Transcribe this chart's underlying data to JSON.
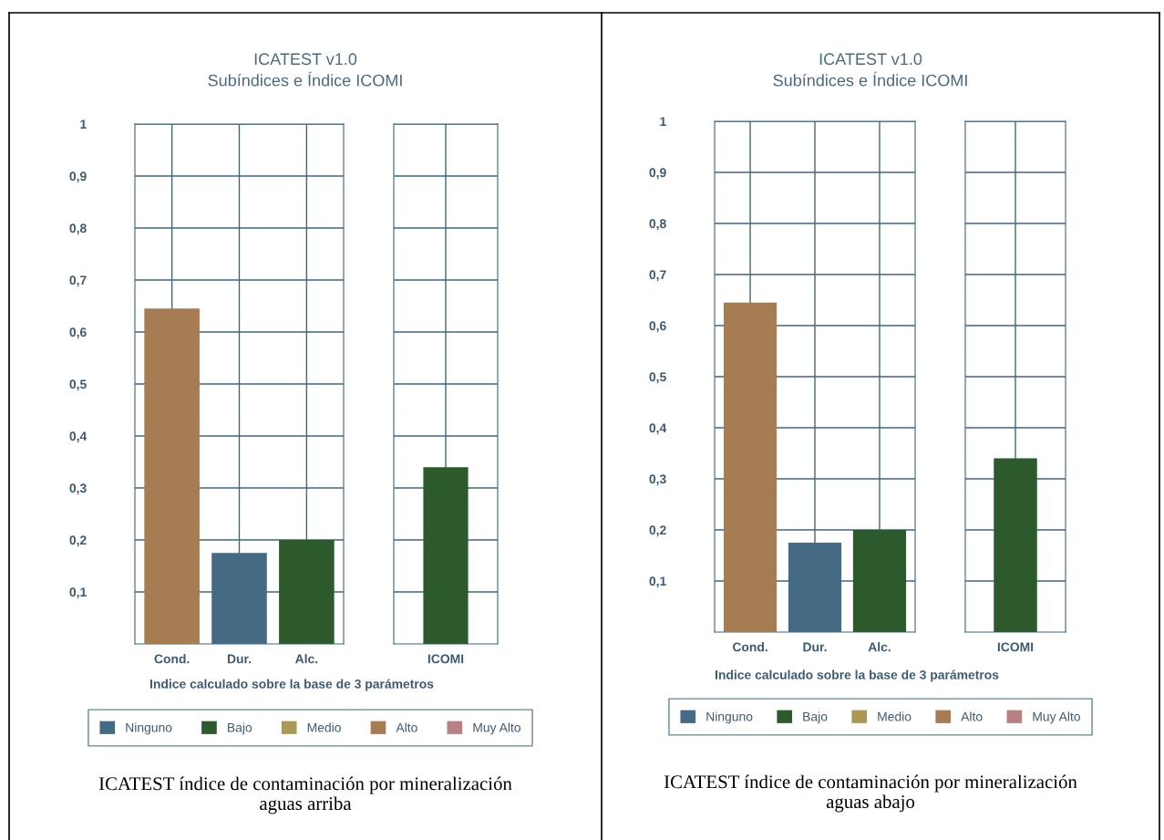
{
  "chart_data": [
    {
      "type": "bar",
      "stacked": true,
      "title": "ICATEST v1.0\nSubíndices e Índice ICOMI",
      "xlabel": "Indice calculado sobre la base de 3 parámetros",
      "categories": [
        "Cond.",
        "Dur.",
        "Alc."
      ],
      "series": [
        {
          "name": "Ninguno",
          "color": "#456b84",
          "values": [
            null,
            0.175,
            null
          ]
        },
        {
          "name": "Bajo",
          "color": "#2d5a2d",
          "values": [
            null,
            null,
            0.2
          ]
        },
        {
          "name": "Medio",
          "color": "#a89a55",
          "values": [
            null,
            null,
            null
          ]
        },
        {
          "name": "Alto",
          "color": "#a67c52",
          "values": [
            0.645,
            null,
            null
          ]
        },
        {
          "name": "Muy Alto",
          "color": "#b88080",
          "values": [
            null,
            null,
            null
          ]
        }
      ],
      "ylim": [
        0,
        1
      ],
      "yticks": [
        {
          "value": 0.1,
          "label": "0,1"
        },
        {
          "value": 0.2,
          "label": "0,2"
        },
        {
          "value": 0.3,
          "label": "0,3"
        },
        {
          "value": 0.4,
          "label": "0,4"
        },
        {
          "value": 0.5,
          "label": "0,5"
        },
        {
          "value": 0.6,
          "label": "0,6"
        },
        {
          "value": 0.7,
          "label": "0,7"
        },
        {
          "value": 0.8,
          "label": "0,8"
        },
        {
          "value": 0.9,
          "label": "0,9"
        },
        1
      ],
      "grid": true,
      "legend": "bottom",
      "annotations": [
        "ICATEST índice de contaminación por mineralización\naguas arriba"
      ]
    },
    {
      "type": "bar",
      "categories": [
        "ICOMI"
      ],
      "series": [
        {
          "color": "#2d5a2d",
          "values": [
            0.34
          ]
        }
      ],
      "ylim": [
        0,
        1
      ],
      "yticks": [
        0.1,
        0.2,
        0.3,
        0.4,
        0.5,
        0.6,
        0.7,
        0.8,
        0.9,
        1
      ],
      "grid": true,
      "tick_labels": "x"
    },
    {
      "type": "bar",
      "stacked": true,
      "title": "ICATEST v1.0\nSubíndices e Índice ICOMI",
      "xlabel": "Indice calculado sobre la base de 3 parámetros",
      "categories": [
        "Cond.",
        "Dur.",
        "Alc."
      ],
      "series": [
        {
          "name": "Ninguno",
          "color": "#456b84",
          "values": [
            null,
            0.175,
            null
          ]
        },
        {
          "name": "Bajo",
          "color": "#2d5a2d",
          "values": [
            null,
            null,
            0.2
          ]
        },
        {
          "name": "Medio",
          "color": "#a89a55",
          "values": [
            null,
            null,
            null
          ]
        },
        {
          "name": "Alto",
          "color": "#a67c52",
          "values": [
            0.645,
            null,
            null
          ]
        },
        {
          "name": "Muy Alto",
          "color": "#b88080",
          "values": [
            null,
            null,
            null
          ]
        }
      ],
      "ylim": [
        0,
        1
      ],
      "yticks": [
        {
          "value": 0.1,
          "label": "0,1"
        },
        {
          "value": 0.2,
          "label": "0,2"
        },
        {
          "value": 0.3,
          "label": "0,3"
        },
        {
          "value": 0.4,
          "label": "0,4"
        },
        {
          "value": 0.5,
          "label": "0,5"
        },
        {
          "value": 0.6,
          "label": "0,6"
        },
        {
          "value": 0.7,
          "label": "0,7"
        },
        {
          "value": 0.8,
          "label": "0,8"
        },
        {
          "value": 0.9,
          "label": "0,9"
        },
        1
      ],
      "grid": true,
      "legend": "bottom",
      "annotations": [
        "ICATEST índice de contaminación por mineralización\naguas abajo"
      ]
    },
    {
      "type": "bar",
      "categories": [
        "ICOMI"
      ],
      "series": [
        {
          "color": "#2d5a2d",
          "values": [
            0.34
          ]
        }
      ],
      "ylim": [
        0,
        1
      ],
      "yticks": [
        0.1,
        0.2,
        0.3,
        0.4,
        0.5,
        0.6,
        0.7,
        0.8,
        0.9,
        1
      ],
      "grid": true,
      "tick_labels": "x"
    }
  ]
}
